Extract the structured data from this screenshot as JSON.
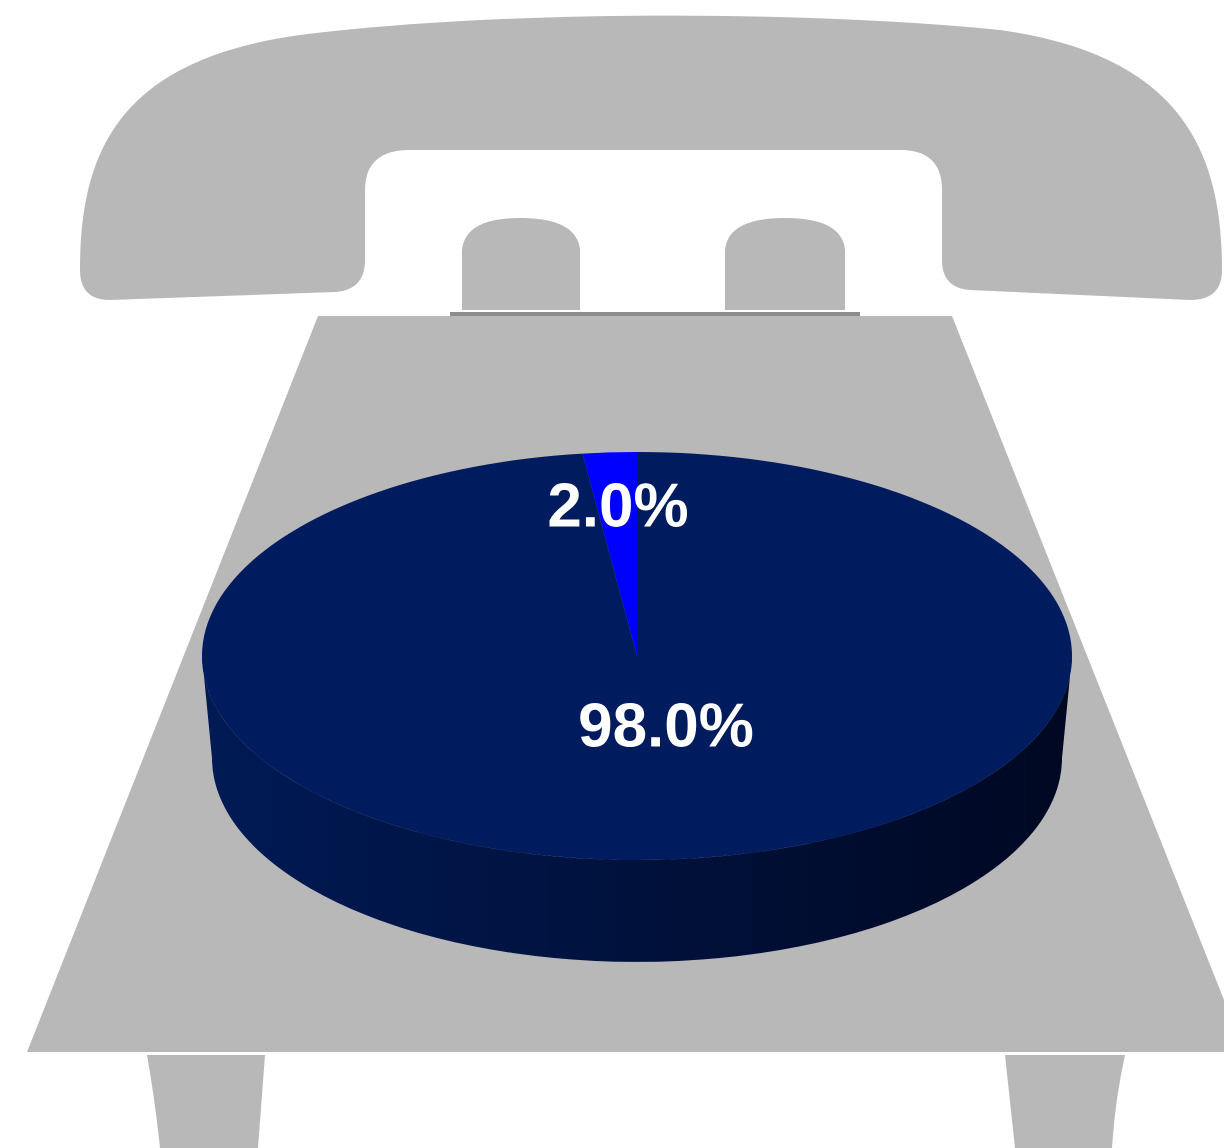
{
  "chart_data": {
    "type": "pie",
    "values": [
      2.0,
      98.0
    ],
    "value_labels": [
      "2.0%",
      "98.0%"
    ],
    "colors": [
      "#0000ff",
      "#001c5e"
    ]
  }
}
